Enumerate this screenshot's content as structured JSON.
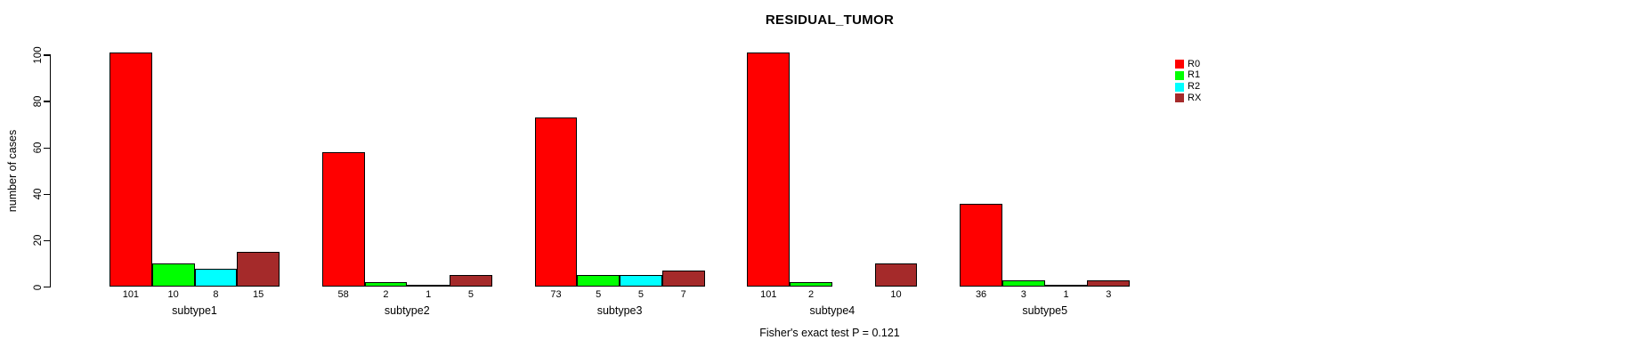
{
  "chart_data": {
    "type": "bar",
    "mode": "grouped",
    "title": "RESIDUAL_TUMOR",
    "ylabel": "number of cases",
    "xlabel": "",
    "ylim": [
      0,
      100
    ],
    "yticks": [
      0,
      20,
      40,
      60,
      80,
      100
    ],
    "grid": false,
    "legend_position": "right-inside",
    "categories": [
      "subtype1",
      "subtype2",
      "subtype3",
      "subtype4",
      "subtype5"
    ],
    "series": [
      {
        "name": "R0",
        "color": "#FF0000",
        "values": [
          101,
          58,
          73,
          101,
          36
        ]
      },
      {
        "name": "R1",
        "color": "#00FF00",
        "values": [
          10,
          2,
          5,
          2,
          3
        ]
      },
      {
        "name": "R2",
        "color": "#00FFFF",
        "values": [
          8,
          1,
          5,
          0,
          1
        ]
      },
      {
        "name": "RX",
        "color": "#A52A2A",
        "values": [
          15,
          5,
          7,
          10,
          3
        ]
      }
    ],
    "bar_count_labels": [
      [
        "101",
        "10",
        "8",
        "15"
      ],
      [
        "58",
        "2",
        "1",
        "5"
      ],
      [
        "73",
        "5",
        "5",
        "7"
      ],
      [
        "101",
        "2",
        "",
        "10"
      ],
      [
        "36",
        "3",
        "1",
        "3"
      ]
    ],
    "annotation": "Fisher's exact test P = 0.121",
    "axis_color": "#000000",
    "background_color": "#FFFFFF"
  }
}
